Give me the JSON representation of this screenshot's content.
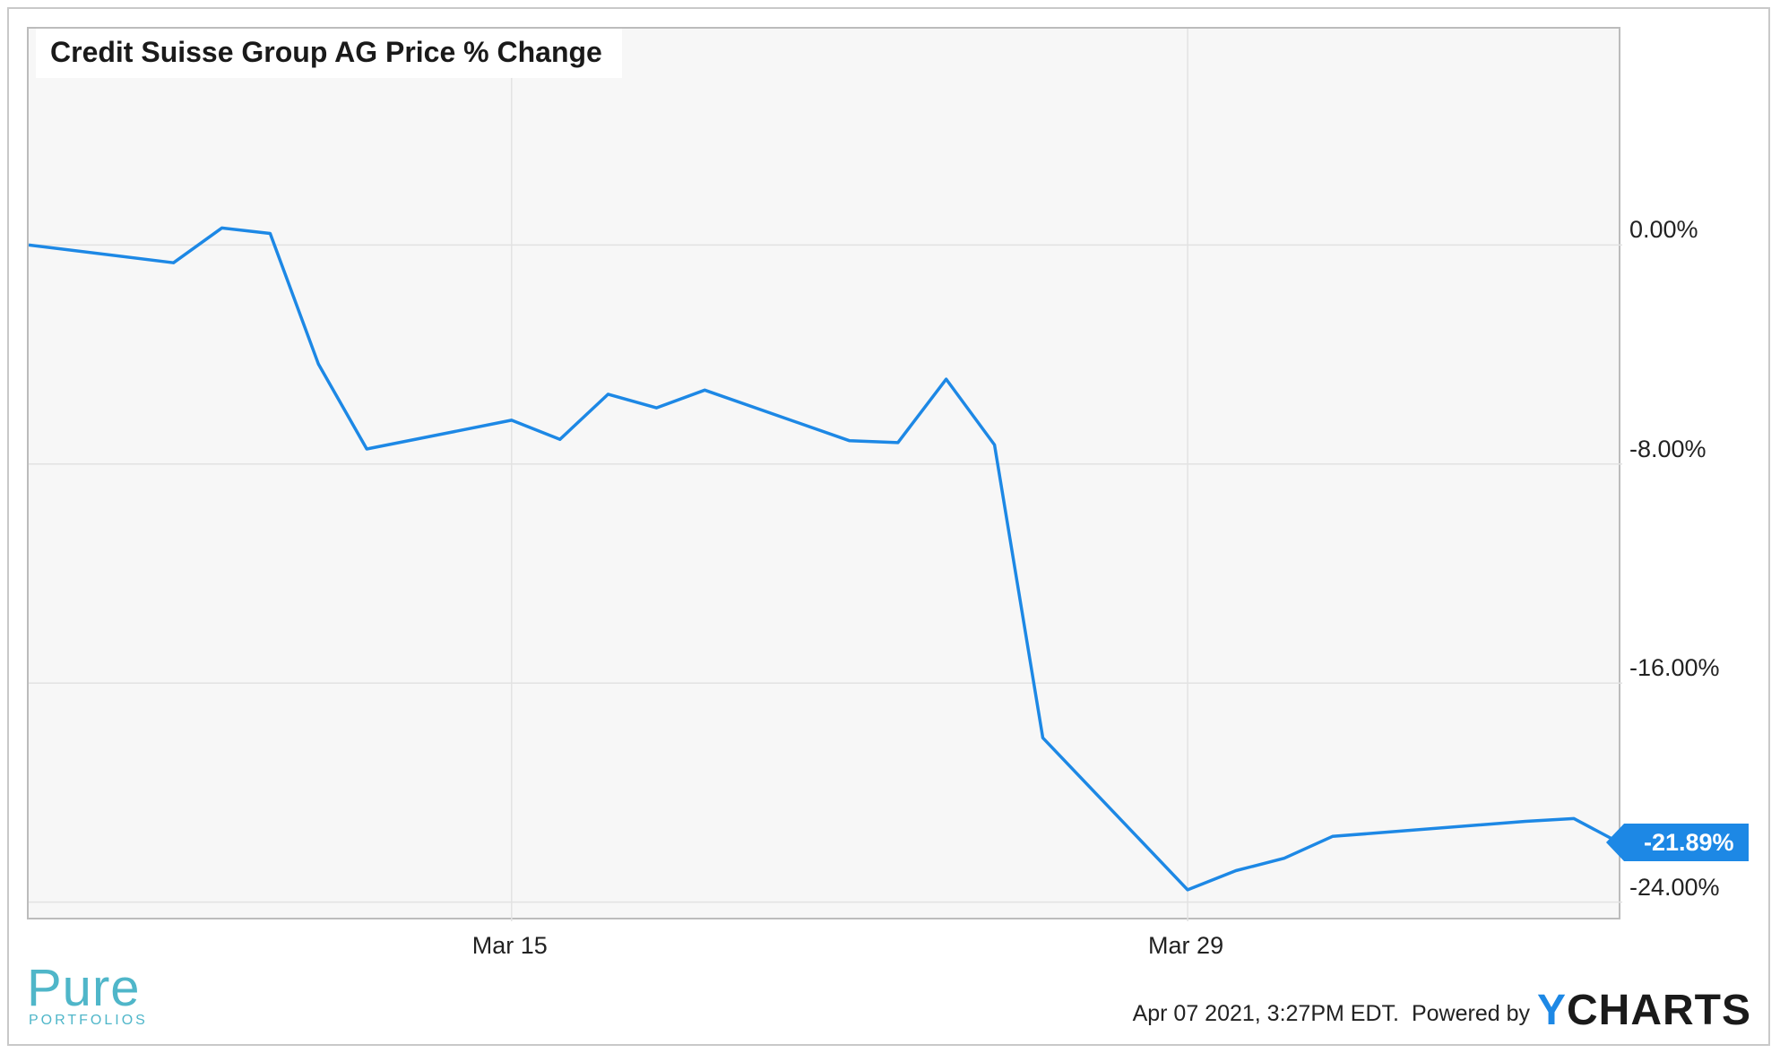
{
  "chart_data": {
    "type": "line",
    "title": "Credit Suisse Group AG Price % Change",
    "xlabel": "",
    "ylabel": "",
    "x": [
      "2021-03-05",
      "2021-03-08",
      "2021-03-09",
      "2021-03-10",
      "2021-03-11",
      "2021-03-12",
      "2021-03-15",
      "2021-03-16",
      "2021-03-17",
      "2021-03-18",
      "2021-03-19",
      "2021-03-22",
      "2021-03-23",
      "2021-03-24",
      "2021-03-25",
      "2021-03-26",
      "2021-03-29",
      "2021-03-30",
      "2021-03-31",
      "2021-04-01",
      "2021-04-05",
      "2021-04-06",
      "2021-04-07"
    ],
    "series": [
      {
        "values": [
          0.0,
          -0.65,
          0.62,
          0.42,
          -4.35,
          -7.45,
          -6.4,
          -7.1,
          -5.45,
          -5.95,
          -5.3,
          -7.15,
          -7.22,
          -4.9,
          -7.3,
          -18.0,
          -23.55,
          -22.85,
          -22.4,
          -21.6,
          -21.05,
          -20.95,
          -21.89
        ]
      }
    ],
    "ylim": [
      -24.7,
      7.9
    ],
    "yticks": [
      "0.00%",
      "-8.00%",
      "-16.00%",
      "-24.00%"
    ],
    "ytick_values": [
      0,
      -8,
      -16,
      -24
    ],
    "xticks": [
      "Mar 15",
      "Mar 29"
    ],
    "xtick_dates": [
      "2021-03-15",
      "2021-03-29"
    ],
    "grid": true,
    "last_value_label": "-21.89%",
    "line_color": "#1d88e5"
  },
  "footer": {
    "timestamp": "Apr 07 2021, 3:27PM EDT.",
    "powered_by": "Powered by",
    "logo_y": "Y",
    "logo_rest": "CHARTS"
  },
  "branding": {
    "pure": "Pure",
    "portfolios": "PORTFOLIOS"
  }
}
